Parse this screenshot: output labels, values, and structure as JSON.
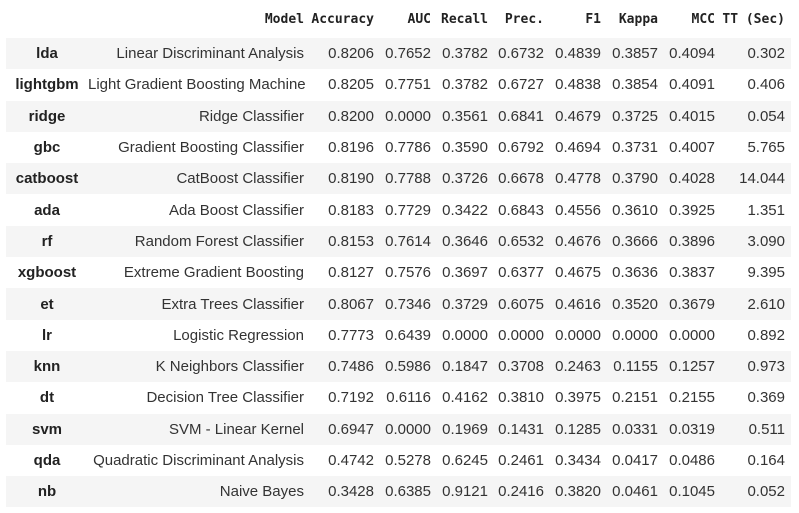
{
  "table": {
    "header": [
      "Model",
      "Accuracy",
      "AUC",
      "Recall",
      "Prec.",
      "F1",
      "Kappa",
      "MCC",
      "TT (Sec)"
    ],
    "rows": [
      [
        "lda",
        "Linear Discriminant Analysis",
        "0.8206",
        "0.7652",
        "0.3782",
        "0.6732",
        "0.4839",
        "0.3857",
        "0.4094",
        "0.302"
      ],
      [
        "lightgbm",
        "Light Gradient Boosting Machine",
        "0.8205",
        "0.7751",
        "0.3782",
        "0.6727",
        "0.4838",
        "0.3854",
        "0.4091",
        "0.406"
      ],
      [
        "ridge",
        "Ridge Classifier",
        "0.8200",
        "0.0000",
        "0.3561",
        "0.6841",
        "0.4679",
        "0.3725",
        "0.4015",
        "0.054"
      ],
      [
        "gbc",
        "Gradient Boosting Classifier",
        "0.8196",
        "0.7786",
        "0.3590",
        "0.6792",
        "0.4694",
        "0.3731",
        "0.4007",
        "5.765"
      ],
      [
        "catboost",
        "CatBoost Classifier",
        "0.8190",
        "0.7788",
        "0.3726",
        "0.6678",
        "0.4778",
        "0.3790",
        "0.4028",
        "14.044"
      ],
      [
        "ada",
        "Ada Boost Classifier",
        "0.8183",
        "0.7729",
        "0.3422",
        "0.6843",
        "0.4556",
        "0.3610",
        "0.3925",
        "1.351"
      ],
      [
        "rf",
        "Random Forest Classifier",
        "0.8153",
        "0.7614",
        "0.3646",
        "0.6532",
        "0.4676",
        "0.3666",
        "0.3896",
        "3.090"
      ],
      [
        "xgboost",
        "Extreme Gradient Boosting",
        "0.8127",
        "0.7576",
        "0.3697",
        "0.6377",
        "0.4675",
        "0.3636",
        "0.3837",
        "9.395"
      ],
      [
        "et",
        "Extra Trees Classifier",
        "0.8067",
        "0.7346",
        "0.3729",
        "0.6075",
        "0.4616",
        "0.3520",
        "0.3679",
        "2.610"
      ],
      [
        "lr",
        "Logistic Regression",
        "0.7773",
        "0.6439",
        "0.0000",
        "0.0000",
        "0.0000",
        "0.0000",
        "0.0000",
        "0.892"
      ],
      [
        "knn",
        "K Neighbors Classifier",
        "0.7486",
        "0.5986",
        "0.1847",
        "0.3708",
        "0.2463",
        "0.1155",
        "0.1257",
        "0.973"
      ],
      [
        "dt",
        "Decision Tree Classifier",
        "0.7192",
        "0.6116",
        "0.4162",
        "0.3810",
        "0.3975",
        "0.2151",
        "0.2155",
        "0.369"
      ],
      [
        "svm",
        "SVM - Linear Kernel",
        "0.6947",
        "0.0000",
        "0.1969",
        "0.1431",
        "0.1285",
        "0.0331",
        "0.0319",
        "0.511"
      ],
      [
        "qda",
        "Quadratic Discriminant Analysis",
        "0.4742",
        "0.5278",
        "0.6245",
        "0.2461",
        "0.3434",
        "0.0417",
        "0.0486",
        "0.164"
      ],
      [
        "nb",
        "Naive Bayes",
        "0.3428",
        "0.6385",
        "0.9121",
        "0.2416",
        "0.3820",
        "0.0461",
        "0.1045",
        "0.052"
      ]
    ]
  }
}
